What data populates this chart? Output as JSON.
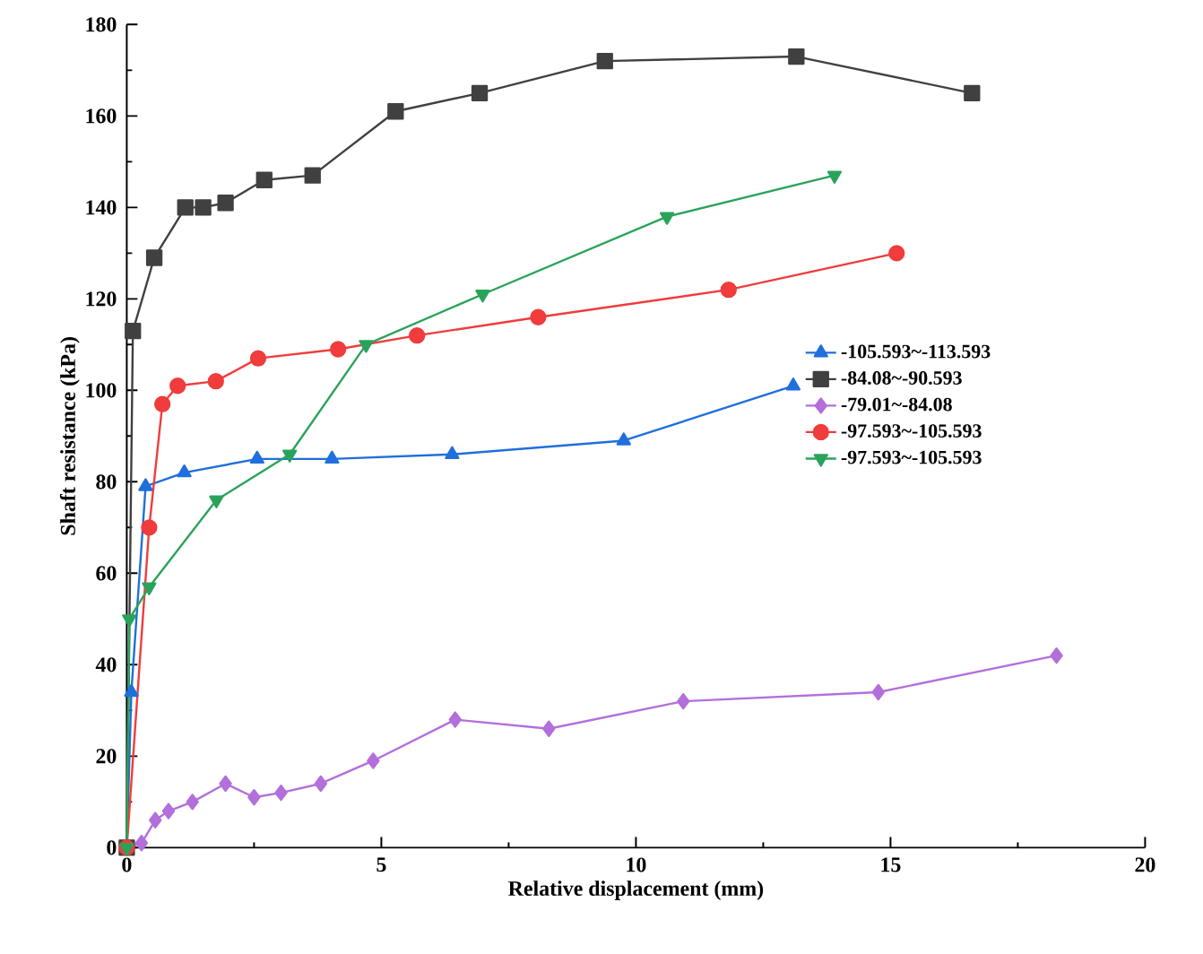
{
  "chart_data": {
    "type": "line",
    "xlabel": "Relative displacement (mm)",
    "ylabel": "Shaft resistance (kPa)",
    "xlim": [
      0,
      20
    ],
    "ylim": [
      0,
      180
    ],
    "xticks": [
      0,
      5,
      10,
      15,
      20
    ],
    "yticks": [
      0,
      20,
      40,
      60,
      80,
      100,
      120,
      140,
      160,
      180
    ],
    "grid": false,
    "legend": "right",
    "series": [
      {
        "name": "-105.593~-113.593",
        "color": "#1f6fdc",
        "marker": "triangle",
        "x": [
          0,
          0.09,
          0.37,
          1.13,
          2.56,
          4.03,
          6.39,
          9.76,
          13.09
        ],
        "values": [
          0,
          34,
          79,
          82,
          85,
          85,
          86,
          89,
          101
        ]
      },
      {
        "name": "-84.08~-90.593",
        "color": "#404040",
        "marker": "square",
        "x": [
          0,
          0.12,
          0.54,
          1.15,
          1.5,
          1.94,
          2.7,
          3.65,
          5.28,
          6.93,
          9.39,
          13.15,
          16.6
        ],
        "values": [
          0,
          113,
          129,
          140,
          140,
          141,
          146,
          147,
          161,
          165,
          172,
          173,
          165
        ]
      },
      {
        "name": "-79.01~-84.08",
        "color": "#b36fdb",
        "marker": "diamond",
        "x": [
          0,
          0.29,
          0.56,
          0.82,
          1.29,
          1.94,
          2.5,
          3.03,
          3.81,
          4.84,
          6.45,
          8.29,
          10.93,
          14.76,
          18.26
        ],
        "values": [
          0,
          1,
          6,
          8,
          10,
          14,
          11,
          12,
          14,
          19,
          28,
          26,
          32,
          34,
          42
        ]
      },
      {
        "name": "-97.593~-105.593",
        "color": "#f03c3c",
        "marker": "circle",
        "x": [
          0,
          0.44,
          0.7,
          1.0,
          1.75,
          2.58,
          4.15,
          5.7,
          8.08,
          11.82,
          15.12
        ],
        "values": [
          0,
          70,
          97,
          101,
          102,
          107,
          109,
          112,
          116,
          122,
          130
        ]
      },
      {
        "name": "-97.593~-105.593",
        "color": "#2aa35a",
        "marker": "triangle-down",
        "x": [
          0,
          0.05,
          0.44,
          1.76,
          3.2,
          4.7,
          6.99,
          10.61,
          13.9
        ],
        "values": [
          0,
          50,
          57,
          76,
          86,
          110,
          121,
          138,
          147
        ]
      }
    ]
  }
}
